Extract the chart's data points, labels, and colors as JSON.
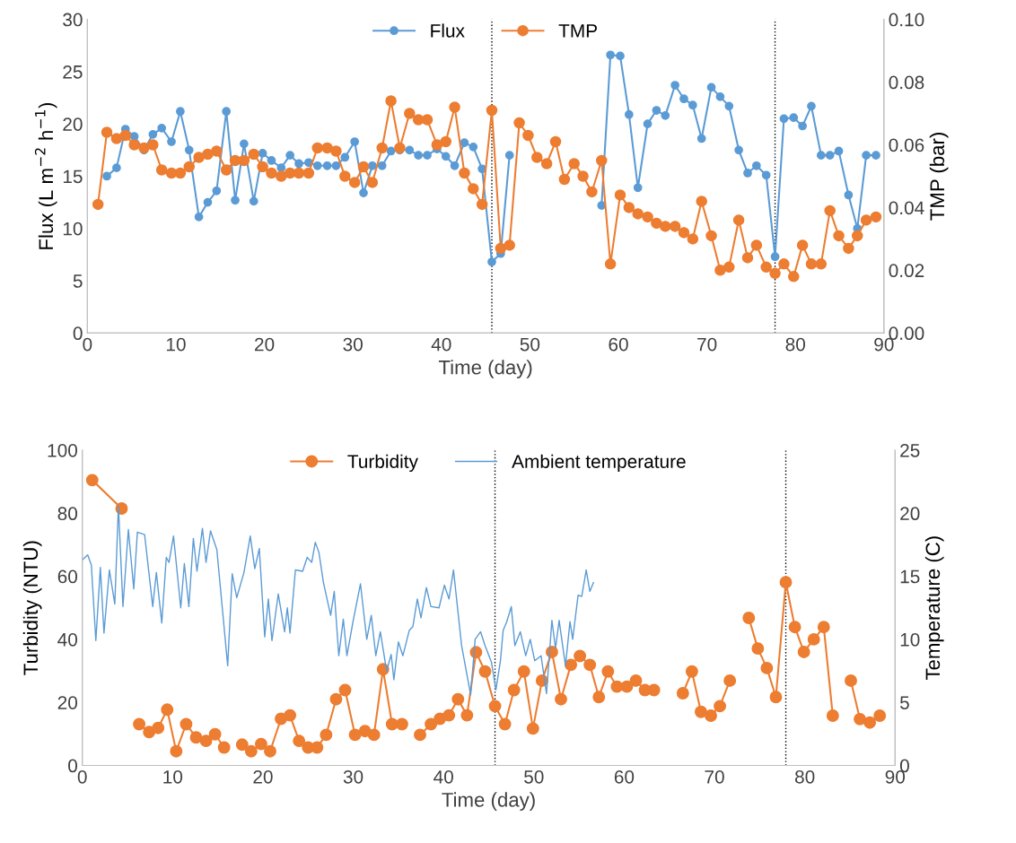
{
  "chart_data": [
    {
      "type": "line",
      "xlabel": "Time (day)",
      "ylabel": "Flux (L m$^{−2}$ h$^{−1}$)",
      "y2label": "TMP (bar)",
      "legend": "top",
      "grid": false,
      "xlim": [
        0,
        90
      ],
      "xticks": [
        0,
        10,
        20,
        30,
        40,
        50,
        60,
        70,
        80,
        90
      ],
      "ylim": [
        0,
        30
      ],
      "yticks": [
        0,
        5,
        10,
        15,
        20,
        25,
        30
      ],
      "y2lim": [
        0,
        0.1
      ],
      "y2ticks": [
        {
          "value": 0,
          "label": "0.00"
        },
        {
          "value": 0.02,
          "label": "0.02"
        },
        {
          "value": 0.04,
          "label": "0.04"
        },
        {
          "value": 0.06,
          "label": "0.06"
        },
        {
          "value": 0.08,
          "label": "0.08"
        },
        {
          "value": 0.1,
          "label": "0.10"
        }
      ],
      "ref_lines": [
        {
          "axis": "x",
          "value": 45.7,
          "color": "#000000",
          "line_style": "dotted"
        },
        {
          "axis": "x",
          "value": 77.7,
          "color": "#000000",
          "line_style": "dotted"
        }
      ],
      "series": [
        {
          "name": "Flux",
          "color": "#5b9bd5",
          "marker": "circle",
          "x": [
            2.2,
            3.3,
            4.3,
            5.3,
            6.4,
            7.4,
            8.4,
            9.5,
            10.5,
            11.5,
            12.6,
            13.6,
            14.6,
            15.7,
            16.7,
            17.7,
            18.8,
            19.8,
            20.8,
            21.9,
            22.9,
            23.9,
            25.0,
            26.0,
            27.1,
            28.1,
            29.1,
            30.2,
            31.2,
            32.2,
            33.3,
            34.3,
            35.3,
            36.4,
            37.4,
            38.4,
            39.5,
            40.5,
            41.5,
            42.6,
            43.6,
            44.6,
            45.7,
            46.7,
            47.7,
            52.9,
            58.1,
            59.1,
            60.2,
            61.2,
            62.2,
            63.3,
            64.3,
            65.3,
            66.4,
            67.4,
            68.4,
            69.4,
            70.5,
            71.5,
            72.5,
            73.6,
            74.6,
            75.6,
            76.7,
            77.7,
            78.7,
            79.8,
            80.8,
            81.8,
            82.9,
            83.9,
            84.9,
            86.0,
            87.0,
            88.0,
            89.1
          ],
          "values": [
            15.0,
            15.8,
            19.5,
            18.8,
            17.5,
            19.0,
            19.6,
            18.3,
            21.2,
            17.5,
            11.1,
            12.5,
            13.6,
            21.2,
            12.7,
            18.1,
            12.6,
            17.2,
            16.5,
            15.8,
            17.0,
            16.2,
            16.3,
            16.0,
            16.0,
            16.0,
            16.8,
            18.3,
            13.4,
            16.0,
            16.0,
            17.4,
            17.5,
            17.5,
            17.0,
            17.0,
            17.6,
            16.9,
            16.0,
            18.2,
            17.8,
            15.7,
            6.8,
            7.6,
            17.0,
            null,
            12.2,
            26.6,
            26.5,
            20.9,
            13.9,
            20.0,
            21.3,
            20.8,
            23.7,
            22.4,
            21.8,
            18.6,
            23.5,
            22.6,
            21.7,
            17.5,
            15.3,
            16.0,
            15.1,
            7.3,
            20.5,
            20.6,
            19.8,
            21.7,
            17.0,
            17.0,
            17.4,
            13.2,
            10.0,
            17.0,
            17.0
          ]
        },
        {
          "name": "TMP",
          "color": "#ed7d31",
          "marker": "circle",
          "axis": "y2",
          "x": [
            1.2,
            2.2,
            3.3,
            4.3,
            5.3,
            6.4,
            7.4,
            8.4,
            9.5,
            10.5,
            11.5,
            12.6,
            13.6,
            14.6,
            15.7,
            16.7,
            17.7,
            18.8,
            19.8,
            20.8,
            21.9,
            22.9,
            23.9,
            25.0,
            26.0,
            27.1,
            28.1,
            29.1,
            30.2,
            31.2,
            32.2,
            33.3,
            34.3,
            35.3,
            36.4,
            37.4,
            38.4,
            39.5,
            40.5,
            41.5,
            42.6,
            43.6,
            44.6,
            45.7,
            46.7,
            47.7,
            48.8,
            49.8,
            50.8,
            51.9,
            52.9,
            53.9,
            55.0,
            56.0,
            57.0,
            58.1,
            59.1,
            60.2,
            61.2,
            62.2,
            63.3,
            64.3,
            65.3,
            66.4,
            67.4,
            68.4,
            69.4,
            70.5,
            71.5,
            72.5,
            73.6,
            74.6,
            75.6,
            76.7,
            77.7,
            78.7,
            79.8,
            80.8,
            81.8,
            82.9,
            83.9,
            84.9,
            86.0,
            87.0,
            88.0,
            89.1
          ],
          "values": [
            0.041,
            0.064,
            0.062,
            0.063,
            0.06,
            0.059,
            0.06,
            0.052,
            0.051,
            0.051,
            0.053,
            0.056,
            0.057,
            0.058,
            0.052,
            0.055,
            0.055,
            0.057,
            0.053,
            0.051,
            0.05,
            0.051,
            0.051,
            0.051,
            0.059,
            0.059,
            0.058,
            0.05,
            0.048,
            0.053,
            0.048,
            0.059,
            0.074,
            0.059,
            0.07,
            0.068,
            0.068,
            0.06,
            0.061,
            0.072,
            0.051,
            0.046,
            0.041,
            0.071,
            0.027,
            0.028,
            0.067,
            0.063,
            0.056,
            0.054,
            0.061,
            0.049,
            0.054,
            0.05,
            0.045,
            0.055,
            0.022,
            0.044,
            0.04,
            0.038,
            0.037,
            0.035,
            0.034,
            0.034,
            0.032,
            0.03,
            0.042,
            0.031,
            0.02,
            0.021,
            0.036,
            0.024,
            0.028,
            0.021,
            0.019,
            0.022,
            0.018,
            0.028,
            0.022,
            0.022,
            0.039,
            0.031,
            0.027,
            0.031,
            0.036,
            0.037
          ]
        }
      ]
    },
    {
      "type": "line",
      "xlabel": "Time (day)",
      "ylabel": "Turbidity (NTU)",
      "y2label": "Temperature (C)",
      "legend": "top",
      "grid": false,
      "xlim": [
        0,
        90
      ],
      "xticks": [
        0,
        10,
        20,
        30,
        40,
        50,
        60,
        70,
        80,
        90
      ],
      "ylim": [
        0,
        100
      ],
      "yticks": [
        0,
        20,
        40,
        60,
        80,
        100
      ],
      "y2lim": [
        0,
        25
      ],
      "y2ticks": [
        0,
        5,
        10,
        15,
        20,
        25
      ],
      "ref_lines": [
        {
          "axis": "x",
          "value": 45.7,
          "color": "#000000",
          "line_style": "dotted"
        },
        {
          "axis": "x",
          "value": 77.9,
          "color": "#000000",
          "line_style": "dotted"
        }
      ],
      "series": [
        {
          "name": "Turbidity",
          "color": "#ed7d31",
          "marker": "circle",
          "x": [
            1.1,
            4.35,
            5.3,
            6.3,
            7.4,
            8.4,
            9.4,
            10.4,
            11.5,
            12.6,
            13.7,
            14.7,
            15.7,
            16.7,
            17.7,
            18.7,
            19.8,
            20.8,
            22.0,
            23.0,
            24.0,
            25.0,
            26.0,
            27.0,
            28.1,
            29.1,
            30.2,
            31.3,
            32.3,
            33.3,
            34.3,
            35.4,
            36.4,
            37.4,
            38.6,
            39.6,
            40.6,
            41.6,
            42.6,
            43.6,
            44.6,
            45.7,
            46.8,
            47.8,
            48.9,
            49.9,
            50.9,
            52.0,
            53.0,
            54.1,
            55.1,
            56.2,
            57.2,
            58.2,
            59.2,
            60.3,
            61.3,
            62.3,
            63.3,
            65.0,
            66.5,
            67.5,
            68.5,
            69.6,
            70.6,
            71.7,
            72.8,
            73.8,
            74.8,
            75.8,
            76.8,
            77.9,
            78.9,
            79.9,
            81.0,
            82.1,
            83.1,
            84.1,
            85.1,
            86.1,
            87.2,
            88.3
          ],
          "values": [
            90.5,
            81.5,
            null,
            13.1,
            10.6,
            11.9,
            17.7,
            4.5,
            13.1,
            8.9,
            7.8,
            9.9,
            5.7,
            null,
            6.6,
            4.5,
            6.8,
            4.5,
            14.8,
            15.9,
            7.8,
            5.7,
            5.7,
            9.7,
            21.0,
            23.9,
            9.7,
            10.9,
            9.7,
            30.5,
            13.1,
            13.1,
            null,
            9.7,
            13.1,
            14.8,
            15.9,
            21.0,
            15.9,
            35.9,
            29.8,
            18.8,
            13.1,
            23.9,
            29.8,
            11.7,
            26.9,
            36.0,
            21.0,
            31.9,
            34.7,
            31.9,
            21.7,
            29.8,
            25.0,
            25.0,
            26.9,
            23.9,
            23.9,
            null,
            22.9,
            29.8,
            17.0,
            15.8,
            18.8,
            26.9,
            null,
            46.8,
            37.1,
            30.9,
            21.7,
            58.1,
            43.9,
            36.0,
            40.0,
            43.9,
            15.8,
            null,
            26.9,
            14.7,
            13.6,
            15.8
          ]
        },
        {
          "name": "Ambient temperature",
          "color": "#5b9bd5",
          "marker": "none",
          "axis": "y2",
          "x": [
            0.0,
            0.6,
            1.0,
            1.5,
            2.0,
            2.4,
            3.0,
            3.6,
            4.0,
            4.5,
            5.1,
            5.7,
            6.1,
            6.9,
            7.8,
            8.2,
            8.8,
            9.3,
            9.6,
            10.1,
            10.9,
            11.3,
            11.8,
            12.3,
            12.7,
            13.3,
            13.7,
            14.2,
            14.9,
            16.1,
            16.6,
            17.1,
            17.9,
            18.6,
            19.1,
            19.6,
            20.2,
            20.6,
            21.0,
            21.7,
            22.4,
            22.7,
            23.0,
            23.6,
            24.4,
            24.9,
            25.4,
            25.8,
            26.2,
            26.7,
            27.5,
            27.9,
            28.4,
            28.9,
            29.3,
            30.0,
            30.8,
            31.5,
            32.0,
            32.5,
            33.0,
            33.7,
            34.2,
            34.5,
            35.0,
            35.5,
            36.2,
            36.6,
            37.1,
            37.5,
            38.1,
            38.6,
            39.5,
            40.1,
            40.6,
            41.1,
            42.0,
            43.0,
            43.5,
            44.1,
            44.6,
            45.3,
            45.8,
            46.3,
            46.6,
            47.0,
            47.5,
            47.9,
            48.5,
            49.1,
            49.6,
            50.1,
            50.8,
            51.4,
            52.0,
            52.4,
            52.8,
            53.5,
            54.0,
            54.3,
            54.9,
            55.3,
            55.8,
            56.2,
            56.6
          ],
          "values": [
            16.3,
            16.7,
            15.9,
            9.9,
            15.7,
            10.5,
            15.5,
            12.8,
            20.6,
            12.6,
            18.7,
            14.0,
            18.5,
            18.3,
            12.6,
            15.3,
            11.3,
            16.5,
            16.1,
            18.2,
            12.5,
            16.0,
            12.6,
            18.0,
            15.4,
            18.8,
            16.1,
            18.6,
            17.1,
            7.9,
            15.2,
            13.3,
            15.3,
            18.2,
            15.6,
            17.2,
            10.2,
            13.2,
            9.9,
            13.6,
            10.6,
            12.5,
            10.5,
            15.5,
            15.4,
            16.5,
            16.1,
            17.7,
            16.9,
            14.5,
            11.9,
            13.8,
            8.7,
            11.6,
            8.7,
            11.5,
            14.4,
            10.0,
            11.9,
            8.7,
            10.6,
            7.5,
            8.8,
            6.8,
            9.8,
            8.7,
            10.7,
            11.0,
            13.2,
            11.7,
            14.1,
            12.6,
            12.5,
            14.3,
            13.2,
            15.5,
            9.5,
            5.6,
            10.0,
            10.6,
            9.5,
            8.2,
            6.0,
            8.3,
            10.7,
            11.4,
            12.6,
            9.5,
            10.6,
            8.7,
            10.0,
            8.3,
            8.7,
            5.7,
            11.5,
            9.3,
            11.5,
            7.9,
            11.4,
            10.0,
            13.5,
            13.4,
            15.5,
            13.8,
            14.5
          ]
        }
      ]
    }
  ]
}
